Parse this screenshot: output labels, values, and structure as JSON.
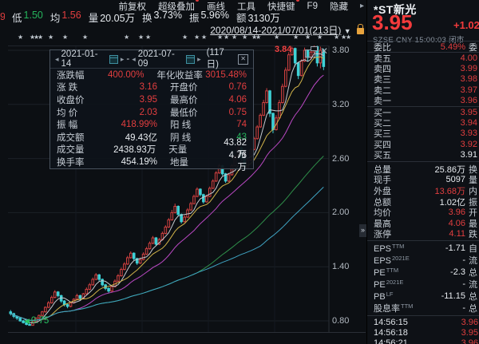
{
  "topbar": {
    "partial_left": "9",
    "stats": [
      {
        "label": "低",
        "value": "1.50",
        "color": "green"
      },
      {
        "label": "均",
        "value": "1.56",
        "color": "red"
      },
      {
        "label": "量",
        "value": "20.05万",
        "color": "w"
      },
      {
        "label": "换",
        "value": "3.73%",
        "color": "w"
      },
      {
        "label": "振",
        "value": "5.96%",
        "color": "w"
      },
      {
        "label": "额",
        "value": "3130万",
        "color": "w"
      }
    ],
    "menu": [
      {
        "label": "前复权",
        "badge": false
      },
      {
        "label": "超级叠加",
        "badge": true
      },
      {
        "label": "画线",
        "badge": false
      },
      {
        "label": "工具",
        "badge": false
      },
      {
        "label": "快捷键",
        "badge": true
      },
      {
        "label": "F9",
        "badge": false
      },
      {
        "label": "隐藏",
        "badge": false
      }
    ],
    "menu_more": "▸",
    "date_range": "2020/08/14-2021/07/01(213日)",
    "dropdown_arrow": "▼"
  },
  "stars": {
    "positions": [
      22,
      37,
      42,
      47,
      60,
      78,
      103,
      155,
      173,
      182,
      228,
      243,
      252,
      272,
      280,
      290,
      303,
      315,
      320,
      343,
      367,
      382,
      397,
      418,
      427,
      433
    ]
  },
  "infobox": {
    "start_date": "2021-01-14",
    "end_date": "2021-07-09",
    "days": "(117日)",
    "close_glyph": "✕",
    "rows": [
      {
        "l1": "涨跌幅",
        "v1": "400.00%",
        "c1": "red",
        "l2": "年化收益率",
        "v2": "3015.48%",
        "c2": "red"
      },
      {
        "l1": "涨 跌",
        "v1": "3.16",
        "c1": "red",
        "l2": "开盘价",
        "v2": "0.76",
        "c2": "red"
      },
      {
        "l1": "收盘价",
        "v1": "3.95",
        "c1": "red",
        "l2": "最高价",
        "v2": "4.06",
        "c2": "red"
      },
      {
        "l1": "均 价",
        "v1": "2.03",
        "c1": "red",
        "l2": "最低价",
        "v2": "0.75",
        "c2": "red"
      },
      {
        "l1": "振 幅",
        "v1": "418.99%",
        "c1": "red",
        "l2": "阳 线",
        "v2": "74",
        "c2": "red"
      },
      {
        "l1": "成交额",
        "v1": "49.43亿",
        "c1": "w",
        "l2": "阴 线",
        "v2": "43",
        "c2": "green"
      },
      {
        "l1": "成交量",
        "v1": "2438.93万",
        "c1": "w",
        "l2": "天量",
        "v2": "43.82万",
        "c2": "w"
      },
      {
        "l1": "换手率",
        "v1": "454.19%",
        "c1": "w",
        "l2": "地量",
        "v2": "4.76万",
        "c2": "w"
      }
    ]
  },
  "chart": {
    "peak_label": "3.84",
    "low_label": "0.75",
    "low_arrow": "◀"
  },
  "chart_data": {
    "type": "candlestick",
    "symbol": "*ST新光",
    "date_range": "2020/08/14-2021/07/01(213日)",
    "y_ticks": [
      3.8,
      3.2,
      2.6,
      2.0,
      1.4,
      0.8
    ],
    "low_marker": 0.75,
    "peak_marker": 3.84,
    "up_color": "#d34141",
    "down_color": "#3ed1d6",
    "ma": [
      {
        "n": 5,
        "color": "#c6cbd1"
      },
      {
        "n": 10,
        "color": "#d2b44a"
      },
      {
        "n": 20,
        "color": "#bb49c4"
      },
      {
        "n": 60,
        "color": "#2f8f4a"
      },
      {
        "n": 80,
        "color": "#3fa3c2"
      }
    ],
    "candles": [
      [
        0.9,
        0.92,
        0.86,
        0.88
      ],
      [
        0.88,
        0.89,
        0.83,
        0.85
      ],
      [
        0.85,
        0.86,
        0.81,
        0.83
      ],
      [
        0.83,
        0.84,
        0.79,
        0.8
      ],
      [
        0.8,
        0.81,
        0.77,
        0.78
      ],
      [
        0.78,
        0.79,
        0.75,
        0.76
      ],
      [
        0.76,
        0.78,
        0.75,
        0.75
      ],
      [
        0.75,
        0.8,
        0.75,
        0.79
      ],
      [
        0.79,
        0.84,
        0.78,
        0.83
      ],
      [
        0.83,
        0.87,
        0.82,
        0.86
      ],
      [
        0.86,
        0.91,
        0.85,
        0.9
      ],
      [
        0.9,
        0.96,
        0.89,
        0.95
      ],
      [
        0.95,
        1.02,
        0.94,
        1.0
      ],
      [
        1.0,
        1.08,
        0.99,
        1.06
      ],
      [
        1.06,
        1.14,
        1.05,
        1.12
      ],
      [
        1.12,
        1.13,
        1.06,
        1.08
      ],
      [
        1.08,
        1.09,
        1.0,
        1.02
      ],
      [
        1.02,
        1.03,
        0.96,
        0.98
      ],
      [
        0.98,
        0.99,
        0.94,
        0.96
      ],
      [
        0.96,
        1.01,
        0.95,
        1.0
      ],
      [
        1.0,
        1.05,
        0.99,
        1.04
      ],
      [
        1.04,
        1.1,
        1.03,
        1.08
      ],
      [
        1.08,
        1.09,
        1.03,
        1.05
      ],
      [
        1.05,
        1.11,
        1.04,
        1.1
      ],
      [
        1.1,
        1.17,
        1.09,
        1.15
      ],
      [
        1.15,
        1.22,
        1.14,
        1.2
      ],
      [
        1.2,
        1.28,
        1.19,
        1.26
      ],
      [
        1.26,
        1.33,
        1.25,
        1.31
      ],
      [
        1.31,
        1.32,
        1.24,
        1.26
      ],
      [
        1.26,
        1.27,
        1.18,
        1.2
      ],
      [
        1.2,
        1.21,
        1.14,
        1.16
      ],
      [
        1.16,
        1.17,
        1.11,
        1.13
      ],
      [
        1.13,
        1.19,
        1.12,
        1.18
      ],
      [
        1.18,
        1.26,
        1.17,
        1.24
      ],
      [
        1.24,
        1.32,
        1.23,
        1.3
      ],
      [
        1.3,
        1.39,
        1.29,
        1.37
      ],
      [
        1.37,
        1.45,
        1.36,
        1.43
      ],
      [
        1.43,
        1.52,
        1.42,
        1.5
      ],
      [
        1.5,
        1.57,
        1.49,
        1.55
      ],
      [
        1.55,
        1.56,
        1.47,
        1.49
      ],
      [
        1.49,
        1.5,
        1.42,
        1.44
      ],
      [
        1.44,
        1.5,
        1.43,
        1.48
      ],
      [
        1.48,
        1.56,
        1.47,
        1.54
      ],
      [
        1.54,
        1.62,
        1.53,
        1.6
      ],
      [
        1.6,
        1.68,
        1.59,
        1.66
      ],
      [
        1.66,
        1.74,
        1.65,
        1.72
      ],
      [
        1.72,
        1.73,
        1.63,
        1.65
      ],
      [
        1.65,
        1.72,
        1.64,
        1.7
      ],
      [
        1.7,
        1.79,
        1.69,
        1.77
      ],
      [
        1.77,
        1.86,
        1.76,
        1.84
      ],
      [
        1.84,
        1.94,
        1.83,
        1.92
      ],
      [
        1.92,
        2.03,
        1.91,
        2.0
      ],
      [
        2.0,
        2.1,
        1.99,
        2.07
      ],
      [
        2.07,
        2.08,
        1.96,
        1.98
      ],
      [
        1.98,
        1.99,
        1.88,
        1.9
      ],
      [
        1.9,
        1.97,
        1.89,
        1.95
      ],
      [
        1.95,
        2.05,
        1.94,
        2.03
      ],
      [
        2.03,
        2.12,
        2.02,
        2.1
      ],
      [
        2.1,
        2.2,
        2.09,
        2.18
      ],
      [
        2.18,
        2.28,
        2.17,
        2.26
      ],
      [
        2.26,
        2.27,
        2.18,
        2.2
      ],
      [
        2.2,
        2.21,
        2.1,
        2.12
      ],
      [
        2.12,
        2.2,
        2.11,
        2.18
      ],
      [
        2.18,
        2.29,
        2.17,
        2.27
      ],
      [
        2.27,
        2.37,
        2.26,
        2.35
      ],
      [
        2.35,
        2.46,
        2.34,
        2.44
      ],
      [
        2.44,
        2.54,
        2.43,
        2.52
      ],
      [
        2.52,
        2.53,
        2.41,
        2.43
      ],
      [
        2.43,
        2.44,
        2.33,
        2.35
      ],
      [
        2.35,
        2.44,
        2.34,
        2.42
      ],
      [
        2.42,
        2.54,
        2.41,
        2.52
      ],
      [
        2.52,
        2.64,
        2.51,
        2.62
      ],
      [
        2.62,
        2.74,
        2.61,
        2.72
      ],
      [
        2.72,
        2.73,
        2.58,
        2.6
      ],
      [
        2.6,
        2.61,
        2.48,
        2.5
      ],
      [
        2.5,
        2.6,
        2.49,
        2.58
      ],
      [
        2.58,
        2.72,
        2.57,
        2.7
      ],
      [
        2.7,
        2.84,
        2.69,
        2.82
      ],
      [
        2.82,
        2.97,
        2.81,
        2.95
      ],
      [
        2.95,
        3.1,
        2.94,
        3.08
      ],
      [
        3.08,
        3.25,
        3.07,
        3.22
      ],
      [
        3.22,
        3.38,
        3.21,
        3.35
      ],
      [
        3.35,
        3.36,
        3.06,
        3.1
      ],
      [
        3.1,
        3.11,
        2.88,
        2.92
      ],
      [
        2.92,
        3.08,
        2.91,
        3.05
      ],
      [
        3.05,
        3.25,
        3.04,
        3.22
      ],
      [
        3.22,
        3.43,
        3.21,
        3.4
      ],
      [
        3.4,
        3.61,
        3.39,
        3.58
      ],
      [
        3.58,
        3.78,
        3.57,
        3.75
      ],
      [
        3.75,
        3.84,
        3.74,
        3.82
      ],
      [
        3.82,
        3.83,
        3.62,
        3.66
      ],
      [
        3.66,
        3.67,
        3.48,
        3.52
      ],
      [
        3.52,
        3.7,
        3.51,
        3.68
      ],
      [
        3.68,
        3.83,
        3.67,
        3.8
      ],
      [
        3.8,
        3.81,
        3.68,
        3.72
      ],
      [
        3.72,
        3.8,
        3.7,
        3.78
      ],
      [
        3.78,
        3.86,
        3.77,
        3.84
      ],
      [
        3.84,
        3.85,
        3.62,
        3.66
      ],
      [
        3.66,
        3.84,
        3.6,
        3.8
      ],
      [
        3.8,
        3.82,
        3.58,
        3.62
      ]
    ]
  },
  "panel": {
    "name": "*ST新光",
    "price": "3.95",
    "change": "+1.02",
    "meta": "SZSE  CNY  15:00:03  闭市",
    "weibi": {
      "label": "委比",
      "value": "5.49%",
      "cut": "委"
    },
    "asks": [
      {
        "label": "卖五",
        "value": "4.00",
        "color": "red"
      },
      {
        "label": "卖四",
        "value": "3.99",
        "color": "red"
      },
      {
        "label": "卖三",
        "value": "3.98",
        "color": "red"
      },
      {
        "label": "卖二",
        "value": "3.97",
        "color": "red"
      },
      {
        "label": "卖一",
        "value": "3.96",
        "color": "red"
      }
    ],
    "bids": [
      {
        "label": "买一",
        "value": "3.95",
        "color": "red"
      },
      {
        "label": "买二",
        "value": "3.94",
        "color": "red"
      },
      {
        "label": "买三",
        "value": "3.93",
        "color": "red"
      },
      {
        "label": "买四",
        "value": "3.92",
        "color": "red"
      },
      {
        "label": "买五",
        "value": "3.91",
        "color": "w"
      }
    ],
    "stats": [
      {
        "label": "总量",
        "value": "25.86万",
        "color": "w",
        "cut": "换"
      },
      {
        "label": "现手",
        "value": "5097",
        "color": "w",
        "cut": "量"
      },
      {
        "label": "外盘",
        "value": "13.68万",
        "color": "red",
        "cut": "内"
      },
      {
        "label": "总额",
        "value": "1.02亿",
        "color": "w",
        "cut": "振"
      },
      {
        "label": "均价",
        "value": "3.96",
        "color": "red",
        "cut": "开"
      },
      {
        "label": "最高",
        "value": "4.06",
        "color": "red",
        "cut": "最"
      },
      {
        "label": "涨停",
        "value": "4.11",
        "color": "red",
        "cut": "跌"
      }
    ],
    "fin": [
      {
        "label": "EPS",
        "sup": "TTM",
        "value": "-1.71",
        "color": "w",
        "cut": "自"
      },
      {
        "label": "EPS",
        "sup": "2021E",
        "value": "-",
        "color": "w",
        "cut": "流"
      },
      {
        "label": "PE",
        "sup": "TTM",
        "value": "-2.3",
        "color": "w",
        "cut": "总"
      },
      {
        "label": "PE",
        "sup": "2021E",
        "value": "-",
        "color": "w",
        "cut": "流"
      },
      {
        "label": "PB",
        "sup": "LF",
        "value": "-11.15",
        "color": "w",
        "cut": "总"
      },
      {
        "label": "股息率",
        "sup": "TTM",
        "value": "-",
        "color": "w",
        "cut": "总"
      }
    ],
    "ticks": [
      {
        "time": "14:56:15",
        "price": "3.96"
      },
      {
        "time": "14:56:18",
        "price": "3.95"
      },
      {
        "time": "14:56:21",
        "price": "3.96"
      }
    ],
    "handle": "»"
  }
}
